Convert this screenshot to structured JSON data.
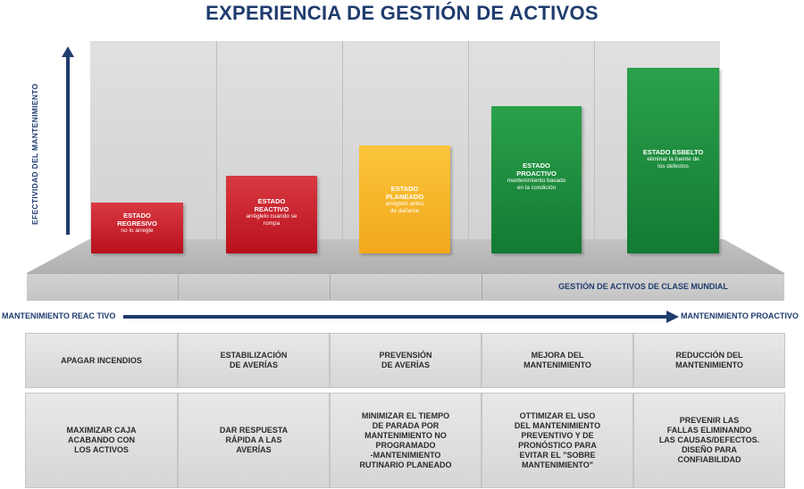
{
  "title": "EXPERIENCIA DE GESTIÓN DE ACTIVOS",
  "y_axis_label": "EFECTIVIDAD DEL MANTENIMIENTO",
  "platform_label": "GESTIÓN DE ACTIVOS DE CLASE MUNDIAL",
  "scale": {
    "left_label": "MANTENIMIENTO REAC TIVO",
    "right_label": "MANTENIMIENTO PROACTIVO"
  },
  "stages": [
    {
      "title": "ESTADO\nREGRESIVO",
      "subtitle": "no lo arregle",
      "color": "#c41e2a"
    },
    {
      "title": "ESTADO\nREACTIVO",
      "subtitle": "arréglelo cuando se\nrompa",
      "color": "#c41e2a"
    },
    {
      "title": "ESTADO\nPLANEADO",
      "subtitle": "arréglelo antes\nde dañarse",
      "color": "#f5b021"
    },
    {
      "title": "ESTADO\nPROACTIVO",
      "subtitle": "mantenimiento basado\nen la condición",
      "color": "#1f8f3f"
    },
    {
      "title": "ESTADO ESBELTO",
      "subtitle": "eliminar la fuente de\nlos defectos",
      "color": "#1f8f3f"
    }
  ],
  "row1": [
    "APAGAR INCENDIOS",
    "ESTABILIZACIÓN\nDE AVERÍAS",
    "PREVENSIÓN\nDE AVERÍAS",
    "MEJORA DEL\nMANTENIMIENTO",
    "REDUCCIÓN DEL\nMANTENIMIENTO"
  ],
  "row2": [
    "MAXIMIZAR CAJA\nACABANDO CON\nLOS ACTIVOS",
    "DAR RESPUESTA\nRÁPIDA A LAS\nAVERÍAS",
    "MINIMIZAR EL TIEMPO\nDE PARADA POR\nMANTENIMIENTO NO\nPROGRAMADO\n-MANTENIMIENTO\nRUTINARIO PLANEADO",
    "OTTIMIZAR EL USO\nDEL MANTENIMIENTO\nPREVENTIVO Y DE\nPRONÓSTICO PARA\nEVITAR EL \"SOBRE\nMANTENIMIENTO\"",
    "PREVENIR LAS\nFALLAS ELIMINANDO\nLAS CAUSAS/DEFECTOS.\nDISEÑO PARA\nCONFIABILIDAD"
  ],
  "colors": {
    "accent": "#1f3c6e",
    "red": "#c41e2a",
    "yellow": "#f5b021",
    "green": "#1f8f3f"
  }
}
